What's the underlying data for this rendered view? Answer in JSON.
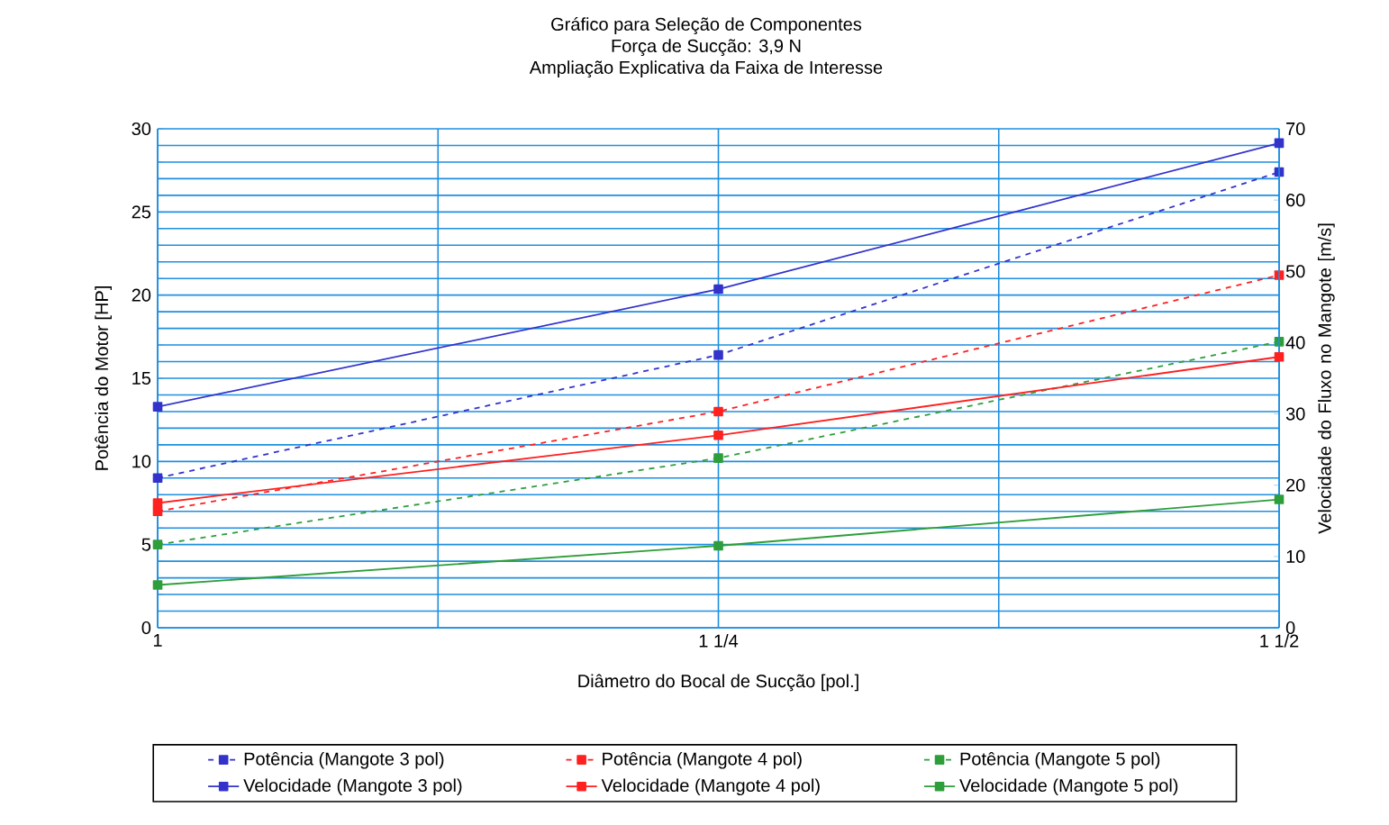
{
  "chart_data": {
    "type": "line",
    "title": "Gráfico para Seleção de Componentes",
    "subtitle": "Força de Sucção: 3,9  N",
    "annotations": [
      "Ampliação Explicativa da Faixa de Interesse"
    ],
    "xlabel": "Diâmetro do Bocal de Sucção [pol.]",
    "ylabel": "Potência do Motor [HP]",
    "y2label": "Velocidade do Fluxo no Mangote [m/s]",
    "categories": [
      "1",
      "1 1/4",
      "1 1/2"
    ],
    "ylim": [
      0,
      30
    ],
    "yticks": [
      0,
      {
        "value": 1,
        "label": null
      },
      {
        "value": 2,
        "label": null
      },
      {
        "value": 3,
        "label": null
      },
      {
        "value": 4,
        "label": null
      },
      5,
      {
        "value": 6,
        "label": null
      },
      {
        "value": 7,
        "label": null
      },
      {
        "value": 8,
        "label": null
      },
      {
        "value": 9,
        "label": null
      },
      10,
      {
        "value": 11,
        "label": null
      },
      {
        "value": 12,
        "label": null
      },
      {
        "value": 13,
        "label": null
      },
      {
        "value": 14,
        "label": null
      },
      15,
      {
        "value": 16,
        "label": null
      },
      {
        "value": 17,
        "label": null
      },
      {
        "value": 18,
        "label": null
      },
      {
        "value": 19,
        "label": null
      },
      20,
      {
        "value": 21,
        "label": null
      },
      {
        "value": 22,
        "label": null
      },
      {
        "value": 23,
        "label": null
      },
      {
        "value": 24,
        "label": null
      },
      25,
      {
        "value": 26,
        "label": null
      },
      {
        "value": 27,
        "label": null
      },
      {
        "value": 28,
        "label": null
      },
      {
        "value": 29,
        "label": null
      },
      30
    ],
    "y2lim": [
      0,
      70
    ],
    "y2ticks": [
      0,
      10,
      20,
      30,
      40,
      50,
      60,
      70
    ],
    "grid": true,
    "legend": "bottom",
    "marker": "square",
    "series": [
      {
        "name": "Potência (Mangote 3 pol)",
        "color": "#3333cc",
        "line_style": "dashed",
        "values": [
          9,
          16.4,
          27.4
        ]
      },
      {
        "name": "Potência (Mangote 4 pol)",
        "color": "#ff2020",
        "line_style": "dashed",
        "values": [
          7,
          13,
          21.2
        ]
      },
      {
        "name": "Potência (Mangote 5 pol)",
        "color": "#2e9e3a",
        "line_style": "dashed",
        "values": [
          5,
          10.2,
          17.2
        ]
      },
      {
        "name": "Velocidade (Mangote 3 pol)",
        "color": "#3333cc",
        "line_style": "solid",
        "axis": "y2",
        "values": [
          31,
          47.5,
          68
        ]
      },
      {
        "name": "Velocidade (Mangote 4 pol)",
        "color": "#ff2020",
        "line_style": "solid",
        "axis": "y2",
        "values": [
          17.5,
          27,
          38
        ]
      },
      {
        "name": "Velocidade (Mangote 5 pol)",
        "color": "#2e9e3a",
        "line_style": "solid",
        "axis": "y2",
        "values": [
          6,
          11.5,
          18
        ]
      }
    ]
  }
}
